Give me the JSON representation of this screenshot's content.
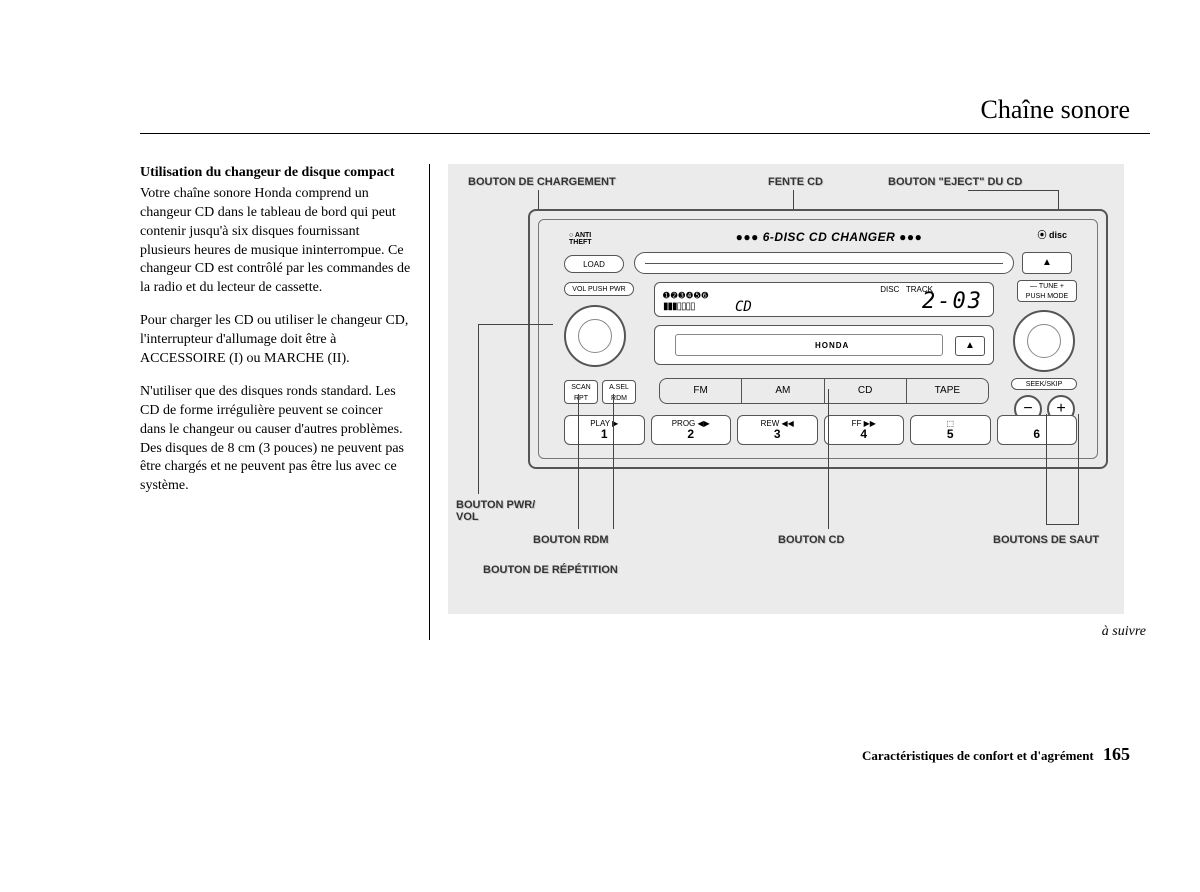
{
  "page": {
    "title": "Chaîne sonore",
    "continue": "à suivre",
    "footer_section": "Caractéristiques de confort et d'agrément",
    "page_number": "165"
  },
  "text": {
    "heading": "Utilisation du changeur de disque compact",
    "p1": "Votre chaîne sonore Honda comprend un changeur CD dans le tableau de bord qui peut contenir jusqu'à six disques fournissant plusieurs heures de musique ininterrompue. Ce changeur CD est contrôlé par les commandes de la radio et du lecteur de cassette.",
    "p2": "Pour charger les CD ou utiliser le changeur CD, l'interrupteur d'allumage doit être à ACCESSOIRE (I) ou MARCHE (II).",
    "p3": "N'utiliser que des disques ronds standard. Les CD de forme irrégulière peuvent se coincer dans le changeur ou causer d'autres problèmes. Des disques de 8 cm (3 pouces) ne peuvent pas être chargés et ne peuvent pas être lus avec ce système."
  },
  "callouts": {
    "load": "BOUTON DE CHARGEMENT",
    "slot": "FENTE CD",
    "eject": "BOUTON \"EJECT\" DU CD",
    "pwr": "BOUTON PWR/\nVOL",
    "rdm": "BOUTON RDM",
    "cd": "BOUTON CD",
    "skip": "BOUTONS DE SAUT",
    "rpt": "BOUTON DE RÉPÉTITION"
  },
  "radio": {
    "anti": "ANTI\nTHEFT",
    "changer": "●●● 6-DISC CD CHANGER ●●●",
    "cd_logo": "COMPACT disc",
    "load": "LOAD",
    "eject_sym": "▲",
    "vol": "VOL PUSH PWR",
    "tune": "— TUNE +\nPUSH MODE",
    "display": {
      "discs": "➊➋➌➍➎➏",
      "disc_label": "DISC",
      "track_label": "TRACK",
      "value": "2-03",
      "mode": "CD",
      "bars": "▮▮▮▯▯▯▯"
    },
    "cassette_brand": "HONDA",
    "cass_eject": "▲",
    "scan": "SCAN\nRPT",
    "asel": "A.SEL\nRDM",
    "bands": [
      "FM",
      "AM",
      "CD",
      "TAPE"
    ],
    "seek": "SEEK/SKIP",
    "seek_minus": "−",
    "seek_plus": "+",
    "presets": [
      {
        "top": "PLAY ▶",
        "num": "1"
      },
      {
        "top": "PROG ◀▶",
        "num": "2"
      },
      {
        "top": "REW ◀◀",
        "num": "3"
      },
      {
        "top": "FF ▶▶",
        "num": "4"
      },
      {
        "top": "⬚",
        "num": "5"
      },
      {
        "top": "",
        "num": "6"
      }
    ]
  },
  "colors": {
    "diagram_bg": "#ebebeb",
    "line": "#555555",
    "text": "#000000"
  }
}
